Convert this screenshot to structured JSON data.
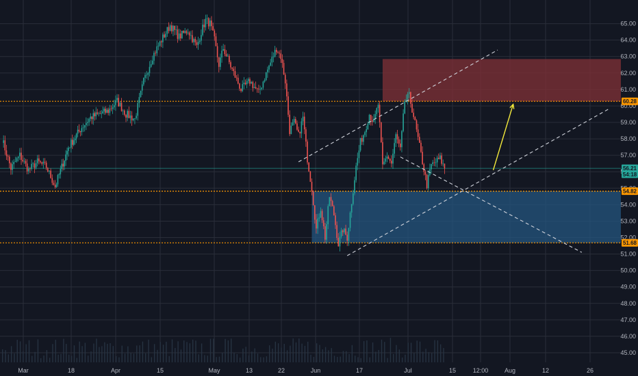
{
  "chart_data": {
    "type": "candlestick",
    "x_tick_labels": [
      "Mar",
      "18",
      "Apr",
      "15",
      "May",
      "13",
      "22",
      "Jun",
      "17",
      "Jul",
      "15",
      "12:00",
      "Aug",
      "12",
      "26"
    ],
    "y_tick_labels": [
      "45.00",
      "46.00",
      "47.00",
      "48.00",
      "49.00",
      "50.00",
      "51.00",
      "52.00",
      "53.00",
      "54.00",
      "55.00",
      "56.00",
      "57.00",
      "58.00",
      "59.00",
      "60.00",
      "61.00",
      "62.00",
      "63.00",
      "64.00",
      "65.00"
    ],
    "ylim": [
      44.6,
      65.2
    ],
    "price_path": [
      [
        0,
        58.0
      ],
      [
        2,
        56.2
      ],
      [
        4,
        57.0
      ],
      [
        6,
        56.1
      ],
      [
        8,
        56.6
      ],
      [
        10,
        56.3
      ],
      [
        12,
        55.1
      ],
      [
        15,
        57.5
      ],
      [
        18,
        58.7
      ],
      [
        20,
        59.3
      ],
      [
        24,
        59.7
      ],
      [
        26,
        60.3
      ],
      [
        28,
        59.5
      ],
      [
        30,
        59.2
      ],
      [
        32,
        61.5
      ],
      [
        34,
        63.0
      ],
      [
        36,
        64.0
      ],
      [
        38,
        64.9
      ],
      [
        40,
        64.2
      ],
      [
        42,
        64.6
      ],
      [
        44,
        63.6
      ],
      [
        45,
        64.5
      ],
      [
        46,
        65.2
      ],
      [
        47,
        65.0
      ],
      [
        48,
        64.0
      ],
      [
        49,
        62.5
      ],
      [
        50,
        63.5
      ],
      [
        52,
        62.2
      ],
      [
        54,
        61.0
      ],
      [
        56,
        61.5
      ],
      [
        58,
        60.8
      ],
      [
        60,
        62.2
      ],
      [
        62,
        63.5
      ],
      [
        63,
        63.0
      ],
      [
        64,
        61.5
      ],
      [
        65,
        58.5
      ],
      [
        66,
        59.0
      ],
      [
        67,
        58.2
      ],
      [
        68,
        59.3
      ],
      [
        69,
        56.8
      ],
      [
        70,
        55.0
      ],
      [
        71,
        52.5
      ],
      [
        72,
        53.8
      ],
      [
        73,
        52.0
      ],
      [
        74,
        54.5
      ],
      [
        75,
        53.4
      ],
      [
        76,
        51.6
      ],
      [
        77,
        52.5
      ],
      [
        78,
        52.0
      ],
      [
        79,
        54.2
      ],
      [
        80,
        56.3
      ],
      [
        81,
        57.8
      ],
      [
        82,
        58.5
      ],
      [
        83,
        59.5
      ],
      [
        84,
        59.0
      ],
      [
        85,
        60.1
      ],
      [
        86,
        56.3
      ],
      [
        87,
        57.0
      ],
      [
        88,
        56.5
      ],
      [
        89,
        58.2
      ],
      [
        90,
        57.3
      ],
      [
        91,
        60.3
      ],
      [
        92,
        60.6
      ],
      [
        93,
        59.4
      ],
      [
        94,
        58.0
      ],
      [
        95,
        56.6
      ],
      [
        96,
        55.2
      ],
      [
        97,
        56.4
      ],
      [
        98,
        56.6
      ],
      [
        99,
        56.8
      ],
      [
        100,
        56.2
      ]
    ],
    "volume_visible": true,
    "shapes": {
      "resistance_zone": {
        "low": 60.28,
        "high": 62.85,
        "x_from": 86,
        "x_to": 140,
        "color": "#7a2f36"
      },
      "support_zone": {
        "low": 51.68,
        "high": 54.82,
        "x_from": 70,
        "x_to": 140,
        "color": "#24557f"
      },
      "horizontal_levels": [
        60.28,
        54.82,
        51.68
      ],
      "channel_lines": [
        {
          "from": [
            67,
            56.6
          ],
          "to": [
            112,
            63.4
          ]
        },
        {
          "from": [
            78,
            50.9
          ],
          "to": [
            137,
            59.8
          ]
        },
        {
          "from": [
            90,
            56.9
          ],
          "to": [
            131,
            51.1
          ]
        }
      ],
      "projection_arrow": {
        "from": [
          111,
          56.1
        ],
        "to": [
          115.5,
          60.1
        ],
        "color": "#f5eb3b"
      }
    },
    "price_tags": [
      {
        "label": "60.28",
        "value": 60.28,
        "color": "#ff9800"
      },
      {
        "label": "56.21",
        "value": 56.21,
        "color": "#26a69a"
      },
      {
        "label": "54:18",
        "value": 55.85,
        "color": "#26a69a"
      },
      {
        "label": "54.82",
        "value": 54.82,
        "color": "#ff9800"
      },
      {
        "label": "51.68",
        "value": 51.68,
        "color": "#ff9800"
      }
    ],
    "colors": {
      "background": "#131722",
      "grid": "#2a2e39",
      "axis_text": "#b2b5be",
      "up_candle": "#26a69a",
      "down_candle": "#ef5350",
      "level_line": "#ff9800",
      "current_price_line": "#26a69a",
      "channel_line": "#d1d4dc",
      "volume": "#263241"
    }
  }
}
